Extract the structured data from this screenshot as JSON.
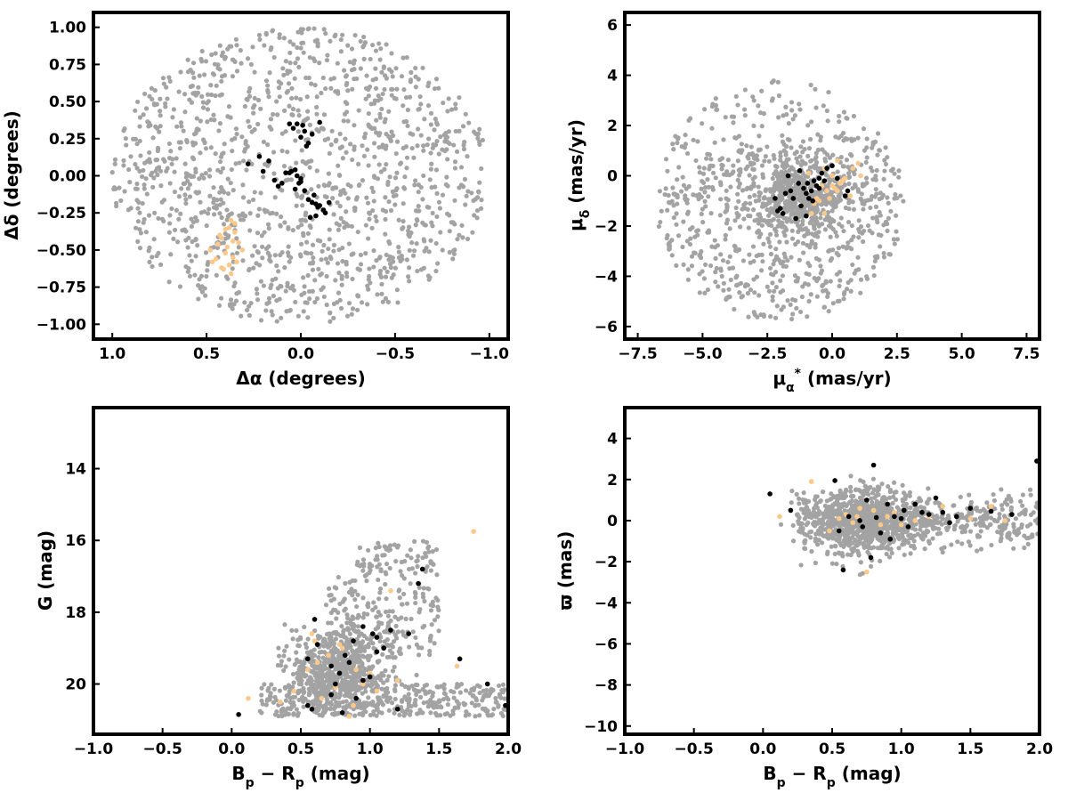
{
  "colors": {
    "background": "#a3a3a3",
    "group_a": "#000000",
    "group_b": "#fcc98b",
    "axes": "#000000"
  },
  "chart_data": [
    {
      "type": "scatter",
      "id": "sky",
      "xlabel": "Δα (degrees)",
      "ylabel": "Δδ (degrees)",
      "xlim": [
        1.1,
        -1.1
      ],
      "ylim": [
        -1.1,
        1.1
      ],
      "grid": false,
      "xticks": [
        1.0,
        0.5,
        0.0,
        -0.5,
        -1.0
      ],
      "xtick_labels": [
        "1.0",
        "0.5",
        "0.0",
        "−0.5",
        "−1.0"
      ],
      "yticks": [
        -1.0,
        -0.75,
        -0.5,
        -0.25,
        0.0,
        0.25,
        0.5,
        0.75,
        1.0
      ],
      "ytick_labels": [
        "−1.00",
        "−0.75",
        "−0.50",
        "−0.25",
        "0.00",
        "0.25",
        "0.50",
        "0.75",
        "1.00"
      ],
      "series": [
        {
          "color": "#a3a3a3",
          "background_field": "disk",
          "x_center": 0.0,
          "y_center": 0.0,
          "radius": 1.0,
          "approx_count": 1300
        },
        {
          "color": "#000000",
          "x": [
            0.28,
            0.22,
            0.2,
            0.17,
            0.14,
            0.12,
            0.1,
            0.08,
            0.05,
            0.03,
            0.02,
            0.0,
            -0.02,
            -0.04,
            -0.06,
            -0.08,
            -0.1,
            -0.12,
            -0.15,
            -0.05,
            -0.08,
            -0.03,
            0.0,
            0.02,
            0.04,
            0.06,
            -0.02,
            -0.04,
            -0.06,
            -0.1,
            -0.13,
            -0.07,
            0.01,
            0.03,
            0.06,
            -0.09,
            -0.01,
            0.0
          ],
          "y": [
            0.08,
            0.13,
            0.03,
            0.1,
            -0.03,
            -0.07,
            -0.05,
            0.02,
            0.03,
            0.04,
            0.0,
            -0.02,
            -0.1,
            -0.16,
            -0.18,
            -0.19,
            -0.2,
            -0.23,
            -0.18,
            -0.28,
            -0.27,
            0.2,
            0.26,
            0.35,
            0.32,
            0.35,
            0.3,
            0.22,
            0.28,
            0.36,
            -0.25,
            -0.13,
            -0.05,
            -0.09,
            0.02,
            -0.21,
            0.34,
            -0.04
          ]
        },
        {
          "color": "#fcc98b",
          "x": [
            0.37,
            0.38,
            0.35,
            0.42,
            0.44,
            0.48,
            0.4,
            0.36,
            0.33,
            0.38,
            0.41,
            0.45,
            0.34,
            0.39,
            0.43,
            0.37,
            0.35,
            0.31,
            0.47,
            0.42,
            0.36,
            0.4
          ],
          "y": [
            -0.3,
            -0.35,
            -0.38,
            -0.42,
            -0.46,
            -0.5,
            -0.52,
            -0.55,
            -0.45,
            -0.6,
            -0.63,
            -0.56,
            -0.58,
            -0.48,
            -0.4,
            -0.66,
            -0.32,
            -0.5,
            -0.58,
            -0.62,
            -0.44,
            -0.36
          ]
        }
      ]
    },
    {
      "type": "scatter",
      "id": "proper-motion",
      "xlabel": "μα* (mas/yr)",
      "ylabel": "μδ (mas/yr)",
      "xlim": [
        -8.0,
        8.0
      ],
      "ylim": [
        -6.5,
        6.5
      ],
      "grid": false,
      "xticks": [
        -7.5,
        -5.0,
        -2.5,
        0.0,
        2.5,
        5.0,
        7.5
      ],
      "xtick_labels": [
        "−7.5",
        "−5.0",
        "−2.5",
        "0.0",
        "2.5",
        "5.0",
        "7.5"
      ],
      "yticks": [
        -6,
        -4,
        -2,
        0,
        2,
        4,
        6
      ],
      "ytick_labels": [
        "−6",
        "−4",
        "−2",
        "0",
        "2",
        "4",
        "6"
      ],
      "series": [
        {
          "color": "#a3a3a3",
          "background_field": "disk-with-core",
          "x_center": -2.0,
          "y_center": -1.0,
          "radius": 4.8,
          "approx_count": 1300
        },
        {
          "color": "#000000",
          "x": [
            -2.1,
            -1.9,
            -1.6,
            -1.5,
            -1.3,
            -1.2,
            -1.1,
            -1.0,
            -0.9,
            -0.8,
            -0.7,
            -0.6,
            -0.5,
            -0.4,
            -0.3,
            -0.2,
            0.0,
            0.2,
            0.5,
            0.6,
            -1.7,
            -2.2,
            -1.4,
            -0.95,
            -0.75,
            -1.0,
            -0.5,
            -1.8,
            -2.0,
            -1.25
          ],
          "y": [
            -1.4,
            -1.5,
            -0.6,
            -0.9,
            -0.3,
            -1.2,
            -0.5,
            -0.7,
            -0.9,
            -0.6,
            -0.2,
            -0.4,
            -0.5,
            0.1,
            -0.2,
            0.3,
            0.4,
            -0.1,
            -0.8,
            -0.6,
            0.0,
            -0.9,
            -1.7,
            -0.3,
            -1.0,
            -1.6,
            -0.1,
            -0.7,
            -1.3,
            0.2
          ]
        },
        {
          "color": "#fcc98b",
          "x": [
            -0.8,
            -0.6,
            -0.4,
            -0.3,
            -0.2,
            0.0,
            0.1,
            0.2,
            0.3,
            0.5,
            0.7,
            1.0,
            1.1,
            -0.5,
            -0.1,
            0.4,
            -0.9,
            -0.7,
            0.0,
            0.8,
            -0.3,
            0.2
          ],
          "y": [
            -1.5,
            -0.9,
            -0.4,
            0.3,
            -0.6,
            0.0,
            -0.5,
            0.6,
            -0.3,
            -0.1,
            -0.8,
            0.5,
            0.0,
            -1.0,
            -0.9,
            -0.2,
            0.1,
            -1.1,
            -0.4,
            0.3,
            -1.5,
            -0.6
          ]
        }
      ]
    },
    {
      "type": "scatter",
      "id": "cmd-g",
      "xlabel": "Bp − Rp (mag)",
      "ylabel": "G (mag)",
      "xlim": [
        -1.0,
        2.0
      ],
      "ylim": [
        21.4,
        12.3
      ],
      "grid": false,
      "xticks": [
        -1.0,
        -0.5,
        0.0,
        0.5,
        1.0,
        1.5,
        2.0
      ],
      "xtick_labels": [
        "−1.0",
        "−0.5",
        "0.0",
        "0.5",
        "1.0",
        "1.5",
        "2.0"
      ],
      "yticks": [
        14,
        16,
        18,
        20
      ],
      "ytick_labels": [
        "14",
        "16",
        "18",
        "20"
      ],
      "series": [
        {
          "color": "#a3a3a3",
          "background_field": "cmd",
          "approx_count": 1300
        },
        {
          "color": "#000000",
          "x": [
            0.05,
            0.55,
            0.6,
            0.55,
            0.62,
            0.72,
            0.75,
            0.78,
            0.8,
            0.82,
            0.85,
            0.88,
            0.9,
            0.95,
            1.0,
            1.02,
            1.05,
            1.1,
            1.15,
            1.2,
            1.28,
            1.35,
            1.38,
            1.65,
            1.85,
            1.98,
            0.95,
            0.72,
            0.58,
            1.05
          ],
          "y": [
            20.85,
            20.6,
            18.2,
            19.3,
            18.9,
            20.3,
            20.0,
            19.7,
            20.8,
            19.2,
            19.4,
            18.8,
            20.4,
            18.4,
            19.8,
            18.6,
            19.1,
            19.0,
            18.5,
            20.7,
            18.6,
            17.2,
            16.8,
            19.3,
            20.0,
            20.6,
            19.9,
            19.5,
            20.7,
            18.7
          ]
        },
        {
          "color": "#fcc98b",
          "x": [
            0.12,
            0.35,
            0.45,
            0.55,
            0.58,
            0.6,
            0.65,
            0.7,
            0.75,
            0.8,
            0.85,
            0.9,
            0.95,
            1.0,
            1.05,
            1.15,
            1.2,
            1.63,
            1.75,
            0.62,
            0.78,
            0.88
          ],
          "y": [
            20.4,
            20.5,
            20.2,
            19.6,
            18.6,
            18.8,
            20.4,
            19.2,
            20.1,
            19.0,
            20.9,
            19.6,
            20.0,
            19.7,
            20.2,
            17.4,
            19.9,
            19.5,
            15.75,
            19.4,
            18.9,
            20.6
          ]
        }
      ]
    },
    {
      "type": "scatter",
      "id": "cmd-parallax",
      "xlabel": "Bp − Rp (mag)",
      "ylabel": "ϖ (mas)",
      "xlim": [
        -1.0,
        2.0
      ],
      "ylim": [
        -10.4,
        5.5
      ],
      "grid": false,
      "xticks": [
        -1.0,
        -0.5,
        0.0,
        0.5,
        1.0,
        1.5,
        2.0
      ],
      "xtick_labels": [
        "−1.0",
        "−0.5",
        "0.0",
        "0.5",
        "1.0",
        "1.5",
        "2.0"
      ],
      "yticks": [
        -10,
        -8,
        -6,
        -4,
        -2,
        0,
        2,
        4
      ],
      "ytick_labels": [
        "−10",
        "−8",
        "−6",
        "−4",
        "−2",
        "0",
        "2",
        "4"
      ],
      "series": [
        {
          "color": "#a3a3a3",
          "background_field": "band",
          "approx_count": 1300
        },
        {
          "color": "#000000",
          "x": [
            0.05,
            0.2,
            0.52,
            0.55,
            0.58,
            0.62,
            0.7,
            0.72,
            0.75,
            0.78,
            0.8,
            0.82,
            0.85,
            0.9,
            0.92,
            0.95,
            1.0,
            1.02,
            1.05,
            1.1,
            1.15,
            1.2,
            1.25,
            1.3,
            1.35,
            1.4,
            1.5,
            1.65,
            1.8,
            1.98
          ],
          "y": [
            1.3,
            0.5,
            1.95,
            -0.5,
            -2.4,
            0.2,
            0.0,
            -0.3,
            1.0,
            -1.8,
            2.7,
            0.15,
            -0.6,
            0.8,
            -0.9,
            0.2,
            0.1,
            0.5,
            -0.3,
            0.8,
            0.4,
            0.3,
            1.1,
            0.4,
            -0.1,
            0.2,
            0.6,
            0.45,
            0.3,
            2.9
          ]
        },
        {
          "color": "#fcc98b",
          "x": [
            0.12,
            0.35,
            0.55,
            0.6,
            0.65,
            0.7,
            0.75,
            0.8,
            0.85,
            0.9,
            0.95,
            1.0,
            1.1,
            1.2,
            1.3,
            1.5,
            1.65,
            1.75,
            0.48,
            0.68
          ],
          "y": [
            0.2,
            1.9,
            0.1,
            0.3,
            -0.1,
            0.6,
            -2.5,
            0.5,
            -0.2,
            0.2,
            0.4,
            -0.2,
            0.0,
            0.2,
            0.7,
            0.1,
            0.7,
            0.0,
            -0.5,
            0.2
          ]
        }
      ]
    }
  ]
}
